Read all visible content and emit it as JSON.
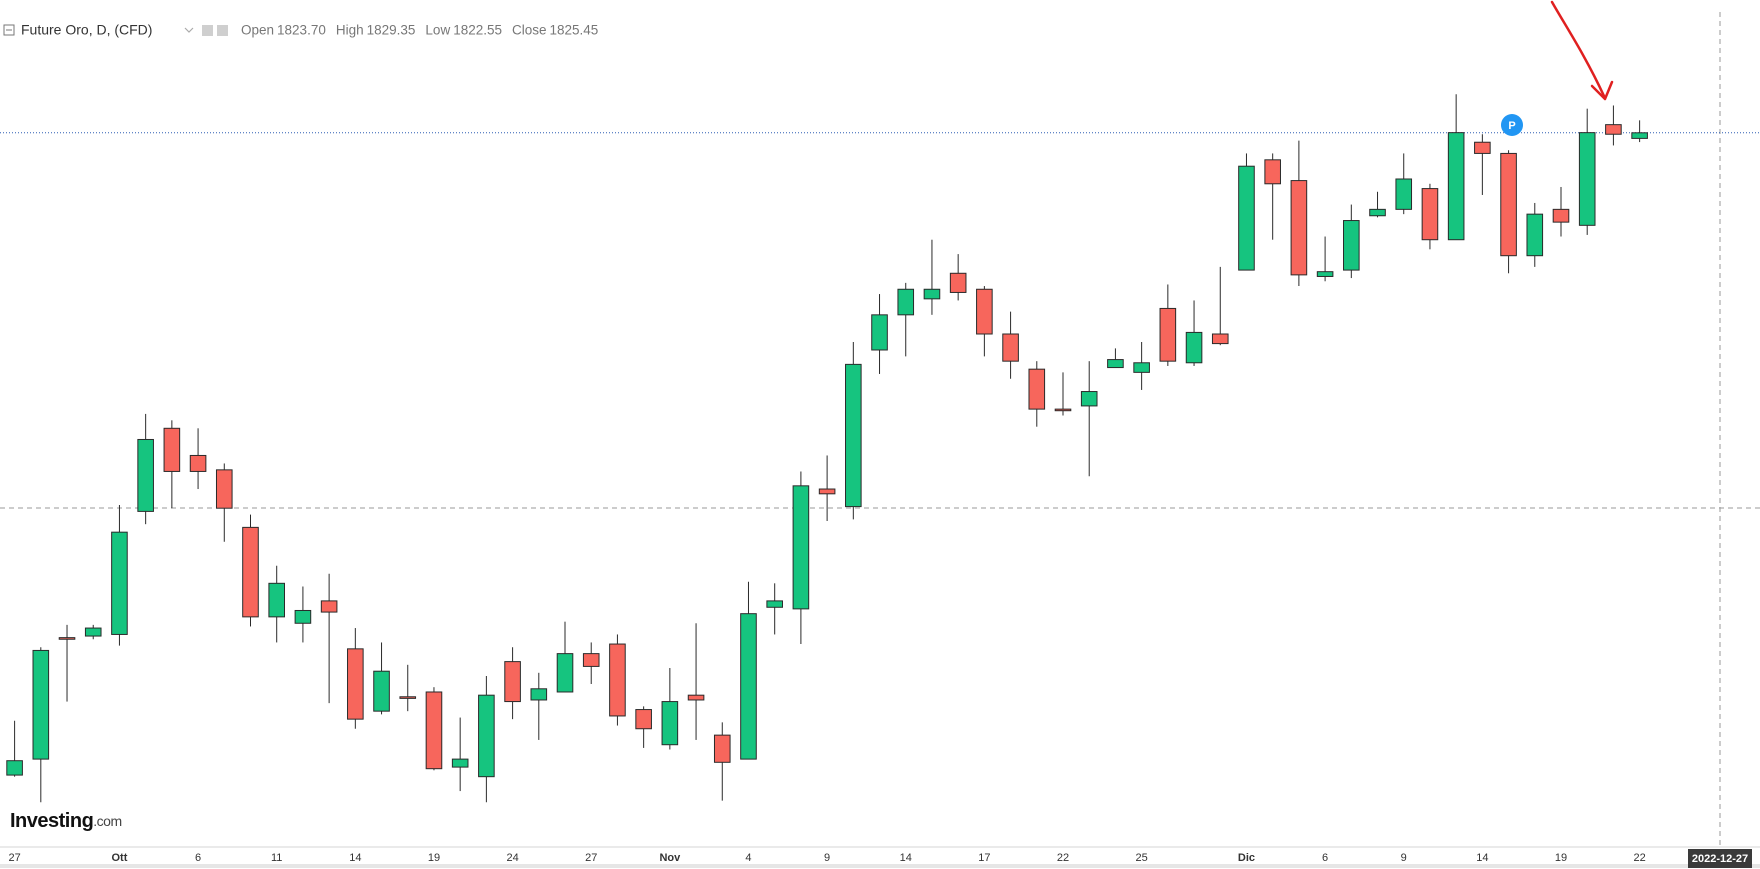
{
  "chart_data": {
    "type": "candlestick",
    "title": "Future Oro, D, (CFD)",
    "ohlc_legend": [
      {
        "label": "Open",
        "value": "1823.70"
      },
      {
        "label": "High",
        "value": "1829.35"
      },
      {
        "label": "Low",
        "value": "1822.55"
      },
      {
        "label": "Close",
        "value": "1825.45"
      }
    ],
    "watermark": {
      "name": "Investing",
      "suffix": ".com"
    },
    "crosshair_label": "2022-12-27",
    "up_color": "#16c47f",
    "down_color": "#f7665c",
    "last_price_line_color": "#2f5fb3",
    "ylim": [
      1602,
      1867
    ],
    "categories": [
      "27",
      null,
      null,
      null,
      "Ott",
      null,
      null,
      "6",
      null,
      null,
      "11",
      null,
      null,
      "14",
      null,
      null,
      "19",
      null,
      null,
      "24",
      null,
      null,
      "27",
      null,
      null,
      "Nov",
      null,
      null,
      "4",
      null,
      null,
      "9",
      null,
      null,
      "14",
      null,
      null,
      "17",
      null,
      null,
      "22",
      null,
      null,
      "25",
      null,
      null,
      null,
      "Dic",
      null,
      null,
      "6",
      null,
      null,
      "9",
      null,
      null,
      "14",
      null,
      null,
      "19",
      null,
      null,
      "22"
    ],
    "open": [
      1624.5,
      1629.5,
      1667.5,
      1668,
      1668.5,
      1707,
      1733,
      1724.5,
      1720,
      1702,
      1674,
      1672,
      1679,
      1664,
      1644.5,
      1649,
      1650.5,
      1627,
      1624,
      1660,
      1648,
      1650.5,
      1662.5,
      1665.5,
      1645,
      1634,
      1649.5,
      1637,
      1629.5,
      1677,
      1676.5,
      1714,
      1708.5,
      1757.5,
      1768.5,
      1773.5,
      1781.5,
      1776.5,
      1762.5,
      1751.5,
      1739,
      1740,
      1752,
      1750.5,
      1770.5,
      1753.5,
      1762.5,
      1782.5,
      1817,
      1810.5,
      1780.5,
      1782.5,
      1799.5,
      1801.5,
      1808,
      1792,
      1822.5,
      1819,
      1787,
      1801.5,
      1796.5,
      1828,
      1823.7
    ],
    "high": [
      1641.5,
      1664.5,
      1671.5,
      1671.5,
      1709,
      1737.5,
      1735.5,
      1733,
      1722,
      1706,
      1690,
      1683.5,
      1687.5,
      1670.5,
      1666,
      1659,
      1652,
      1642.5,
      1655.5,
      1664.5,
      1656.5,
      1672.5,
      1666,
      1668.5,
      1646,
      1658,
      1672,
      1641,
      1685,
      1684.5,
      1719.5,
      1724.5,
      1760,
      1775,
      1778.5,
      1792,
      1787.5,
      1777.5,
      1769.5,
      1754,
      1750.5,
      1754,
      1758,
      1760,
      1778,
      1773,
      1783.5,
      1819,
      1819,
      1823,
      1793,
      1803,
      1807,
      1819,
      1809.5,
      1837.5,
      1825,
      1820,
      1803.5,
      1808.5,
      1833,
      1834,
      1829.35
    ],
    "low": [
      1624,
      1616,
      1647.5,
      1667,
      1665,
      1703,
      1708,
      1714,
      1697.5,
      1671,
      1666,
      1666,
      1647,
      1639,
      1643.5,
      1644.5,
      1626,
      1619.5,
      1616,
      1642,
      1635.5,
      1650.5,
      1653,
      1640,
      1633,
      1632.5,
      1635.5,
      1616.5,
      1629.5,
      1668.5,
      1665.5,
      1704,
      1704.5,
      1750,
      1755.5,
      1768.5,
      1773,
      1755.5,
      1748.5,
      1733.5,
      1737,
      1718,
      1752,
      1745,
      1752.5,
      1752.5,
      1759,
      1782.5,
      1792,
      1777.5,
      1779,
      1780,
      1799,
      1800,
      1789,
      1792,
      1806,
      1781.5,
      1783.5,
      1793,
      1793.5,
      1821.5,
      1822.55
    ],
    "close": [
      1629,
      1663.5,
      1667,
      1670.5,
      1700.5,
      1729.5,
      1719.5,
      1719.5,
      1708,
      1674,
      1684.5,
      1676,
      1675.5,
      1642,
      1657,
      1648.5,
      1626.5,
      1629.5,
      1649.5,
      1647.5,
      1651.5,
      1662.5,
      1658.5,
      1643,
      1639,
      1647.5,
      1648,
      1628.5,
      1675,
      1679,
      1715,
      1712.5,
      1753,
      1768.5,
      1776.5,
      1776.5,
      1775.5,
      1762.5,
      1754,
      1739,
      1738.5,
      1744.5,
      1754.5,
      1753.5,
      1754,
      1763,
      1759.5,
      1815,
      1809.5,
      1781,
      1782,
      1798,
      1801.5,
      1811,
      1792,
      1825.5,
      1819,
      1787,
      1800,
      1797.5,
      1825.5,
      1825,
      1825.45
    ]
  }
}
